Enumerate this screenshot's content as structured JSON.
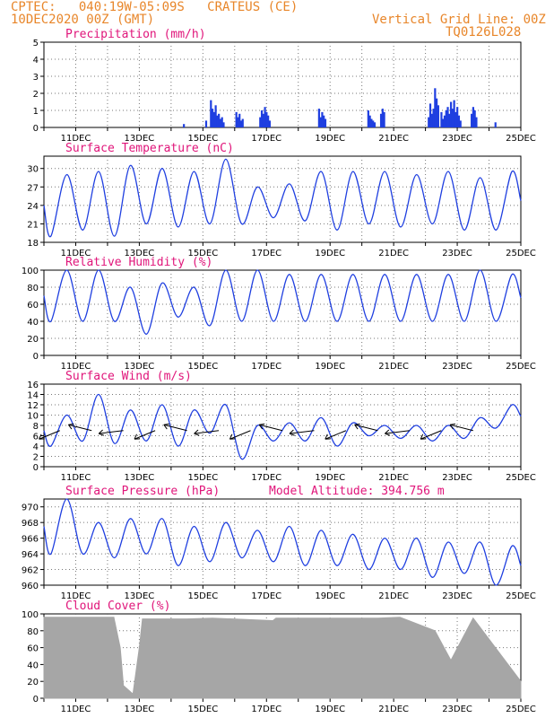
{
  "header": {
    "line1": "CPTEC:   040:19W-05:09S   CRATEUS (CE)",
    "line2": "10DEC2020 00Z (GMT)",
    "right1": "Vertical Grid Line: 00Z",
    "right2": "TQ0126L028"
  },
  "colors": {
    "header": "#e8862a",
    "title": "#e0157a",
    "series": "#1f3fe0",
    "cloud": "#a6a6a6",
    "arrow": "#000000"
  },
  "x_ticks": [
    "11DEC",
    "13DEC",
    "15DEC",
    "17DEC",
    "19DEC",
    "21DEC",
    "23DEC",
    "25DEC"
  ],
  "chart_data": [
    {
      "id": "precip",
      "type": "bar",
      "title": "Precipitation (mm/h)",
      "ylim": [
        0,
        5
      ],
      "yticks": [
        0,
        1,
        2,
        3,
        4,
        5
      ],
      "x_days": [
        0,
        15
      ],
      "series": [
        {
          "x": [
            4.4,
            5.1,
            5.25,
            5.3,
            5.35,
            5.4,
            5.45,
            5.5,
            5.55,
            5.6,
            5.65,
            6.05,
            6.1,
            6.15,
            6.2,
            6.25,
            6.8,
            6.85,
            6.9,
            6.95,
            7.0,
            7.05,
            7.1,
            8.65,
            8.7,
            8.75,
            8.8,
            8.85,
            10.2,
            10.25,
            10.3,
            10.35,
            10.4,
            10.6,
            10.65,
            10.7,
            12.1,
            12.15,
            12.2,
            12.25,
            12.3,
            12.35,
            12.4,
            12.5,
            12.55,
            12.6,
            12.65,
            12.7,
            12.75,
            12.8,
            12.85,
            12.9,
            12.95,
            13.0,
            13.05,
            13.1,
            13.45,
            13.5,
            13.55,
            13.6,
            14.2
          ],
          "values": [
            0.2,
            0.4,
            1.6,
            1.1,
            0.9,
            1.3,
            0.7,
            0.8,
            0.5,
            0.6,
            0.3,
            0.9,
            0.6,
            0.8,
            0.4,
            0.5,
            0.6,
            1.0,
            0.8,
            1.2,
            0.9,
            0.7,
            0.4,
            1.1,
            0.6,
            0.9,
            0.7,
            0.5,
            1.0,
            0.7,
            0.5,
            0.4,
            0.3,
            0.8,
            1.1,
            0.9,
            0.6,
            1.4,
            0.8,
            1.1,
            2.3,
            1.7,
            1.3,
            0.9,
            0.5,
            0.7,
            1.0,
            1.2,
            0.8,
            1.5,
            1.1,
            1.6,
            0.9,
            1.2,
            0.7,
            0.4,
            0.8,
            1.2,
            1.0,
            0.6,
            0.3
          ]
        }
      ]
    },
    {
      "id": "temp",
      "type": "line",
      "title": "Surface Temperature (nC)",
      "ylim": [
        18,
        32
      ],
      "yticks": [
        18,
        21,
        24,
        27,
        30
      ],
      "x_days": [
        0,
        15
      ],
      "series": [
        {
          "maxima": [
            29,
            29.5,
            30.5,
            30,
            29.5,
            31.5,
            27,
            27.5,
            29.5,
            29.5,
            29.5,
            29,
            29.5,
            28.5,
            29.5
          ],
          "minima": [
            19,
            20,
            19,
            21,
            20.5,
            21,
            21,
            22,
            21.5,
            20,
            21,
            20.5,
            21,
            20,
            20
          ]
        }
      ]
    },
    {
      "id": "rh",
      "type": "line",
      "title": "Relative Humidity (%)",
      "ylim": [
        0,
        100
      ],
      "yticks": [
        0,
        20,
        40,
        60,
        80,
        100
      ],
      "x_days": [
        0,
        15
      ],
      "series": [
        {
          "maxima": [
            100,
            100,
            80,
            85,
            80,
            100,
            100,
            95,
            95,
            95,
            95,
            95,
            95,
            100,
            95
          ],
          "minima": [
            40,
            40,
            40,
            25,
            45,
            35,
            40,
            40,
            40,
            40,
            40,
            40,
            40,
            40,
            40
          ]
        }
      ]
    },
    {
      "id": "wind",
      "type": "line",
      "title": "Surface Wind (m/s)",
      "ylim": [
        0,
        16
      ],
      "yticks": [
        0,
        2,
        4,
        6,
        8,
        10,
        12,
        14,
        16
      ],
      "x_days": [
        0,
        15
      ],
      "series": [
        {
          "maxima": [
            10,
            14,
            11,
            12,
            11,
            12,
            8,
            8.5,
            9.5,
            8.5,
            8,
            8,
            8,
            9.5,
            12
          ],
          "minima": [
            4,
            5,
            4.5,
            5,
            4,
            6.5,
            1.5,
            5,
            5,
            4,
            6,
            5.5,
            5,
            5.5,
            7.5
          ]
        }
      ]
    },
    {
      "id": "pres",
      "type": "line",
      "title": "Surface Pressure (hPa)",
      "annotation": "Model Altitude: 394.756 m",
      "ylim": [
        960,
        971
      ],
      "yticks": [
        960,
        962,
        964,
        966,
        968,
        970
      ],
      "x_days": [
        0,
        15
      ],
      "series": [
        {
          "maxima": [
            971,
            968,
            968.5,
            968.5,
            967.5,
            968,
            967,
            967.5,
            967,
            966.5,
            966,
            966,
            965.5,
            965.5,
            965
          ],
          "minima": [
            964,
            964,
            963.5,
            964,
            962.5,
            963,
            963.5,
            963,
            962.5,
            962.5,
            962,
            962,
            961,
            961.5,
            960
          ]
        }
      ]
    },
    {
      "id": "cloud",
      "type": "area",
      "title": "Cloud Cover (%)",
      "ylim": [
        0,
        100
      ],
      "yticks": [
        0,
        20,
        40,
        60,
        80,
        100
      ],
      "x_days": [
        0,
        15
      ],
      "series": [
        {
          "x": [
            0,
            2.2,
            2.4,
            2.5,
            2.8,
            3.0,
            3.1,
            4.5,
            5.3,
            7.2,
            7.3,
            10.5,
            11.2,
            12.3,
            12.8,
            13.5,
            15
          ],
          "values": [
            96,
            96,
            60,
            15,
            5,
            60,
            94,
            94,
            95,
            92,
            95,
            95,
            96,
            80,
            45,
            95,
            20
          ]
        }
      ]
    }
  ]
}
